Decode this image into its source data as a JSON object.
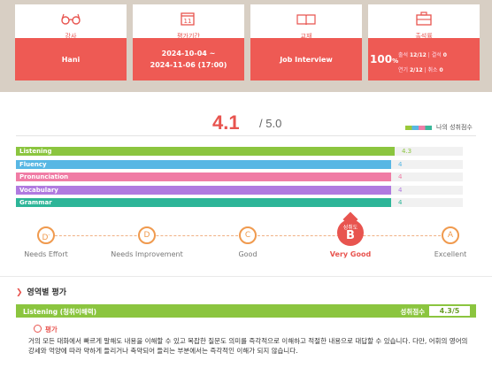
{
  "cards": [
    {
      "label": "강사",
      "icon": "glasses-icon",
      "value": "Hani"
    },
    {
      "label": "평가기간",
      "icon": "calendar-icon",
      "icon_text": "11",
      "value_line1": "2024-10-04 ~",
      "value_line2": "2024-11-06 (17:00)"
    },
    {
      "label": "교재",
      "icon": "book-icon",
      "value": "Job Interview"
    },
    {
      "label": "출석률",
      "icon": "briefcase-icon",
      "percent": "100",
      "percent_unit": "%",
      "line1_a": "출석",
      "line1_b": "12/12",
      "line1_c": "| 결석",
      "line1_d": "0",
      "line2_a": "연기",
      "line2_b": "2/12",
      "line2_c": "| 취소",
      "line2_d": "0"
    }
  ],
  "score": {
    "value": "4.1",
    "total": "/ 5.0",
    "legend": "나의 성취점수"
  },
  "bars": [
    {
      "name": "Listening",
      "value": "4.3",
      "score": 4.3,
      "color": "#8bc53f"
    },
    {
      "name": "Fluency",
      "value": "4",
      "score": 4,
      "color": "#58b7e4"
    },
    {
      "name": "Pronunciation",
      "value": "4",
      "score": 4,
      "color": "#f07ca5"
    },
    {
      "name": "Vocabulary",
      "value": "4",
      "score": 4,
      "color": "#b07ae0"
    },
    {
      "name": "Grammar",
      "value": "4",
      "score": 4,
      "color": "#2db598"
    }
  ],
  "levels": [
    {
      "grade": "D",
      "sup": "-",
      "name": "Needs Effort"
    },
    {
      "grade": "D",
      "name": "Needs Improvement"
    },
    {
      "grade": "C",
      "name": "Good"
    },
    {
      "grade": "B",
      "name": "Very Good",
      "active": true,
      "sub": "성취도"
    },
    {
      "grade": "A",
      "name": "Excellent"
    }
  ],
  "section": {
    "title": "영역별 평가",
    "skill_name": "Listening (청취이해력)",
    "score_label": "성취점수",
    "score_value": "4.3/5",
    "eval_title": "평가",
    "eval_text": "거의 모든 대화에서 빠르게 말해도 내용을 이해할 수 있고 복잡한 질문도 의미를 즉각적으로 이해하고 적절한 내용으로 대답할 수 있습니다. 다만, 어휘의 영어의 강세와 억양에 따라 약하게 들리거나 축약되어 들리는 부분에서는 즉각적인 이해가 되지 않습니다."
  },
  "colors": {
    "accent": "#e8544f",
    "band": "#d8cfc4",
    "orange": "#f09a4e"
  }
}
